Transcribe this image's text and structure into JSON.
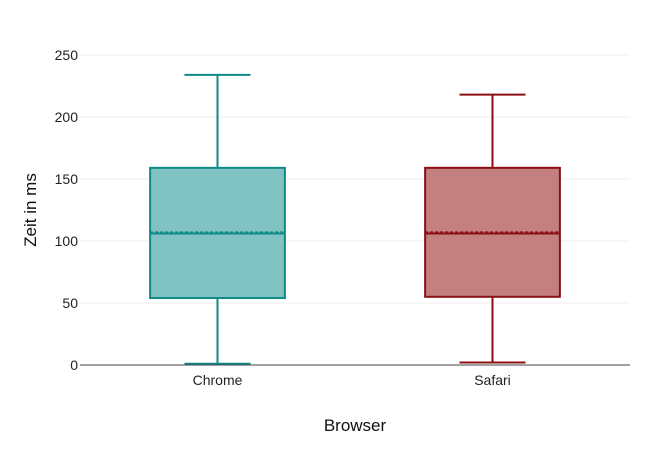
{
  "chart_data": {
    "type": "box",
    "title": "",
    "xlabel": "Browser",
    "ylabel": "Zeit in ms",
    "ylim": [
      0,
      250
    ],
    "yticks": [
      0,
      50,
      100,
      150,
      200,
      250
    ],
    "grid": true,
    "categories": [
      "Chrome",
      "Safari"
    ],
    "series": [
      {
        "category": "Chrome",
        "min": 1,
        "q1": 54,
        "median": 106,
        "mean": 107,
        "q3": 159,
        "max": 234,
        "color": "#0f8a87",
        "fill": "#80c3c2"
      },
      {
        "category": "Safari",
        "min": 2,
        "q1": 55,
        "median": 106,
        "mean": 107,
        "q3": 159,
        "max": 218,
        "color": "#8b0f12",
        "fill": "#c48081"
      }
    ]
  }
}
